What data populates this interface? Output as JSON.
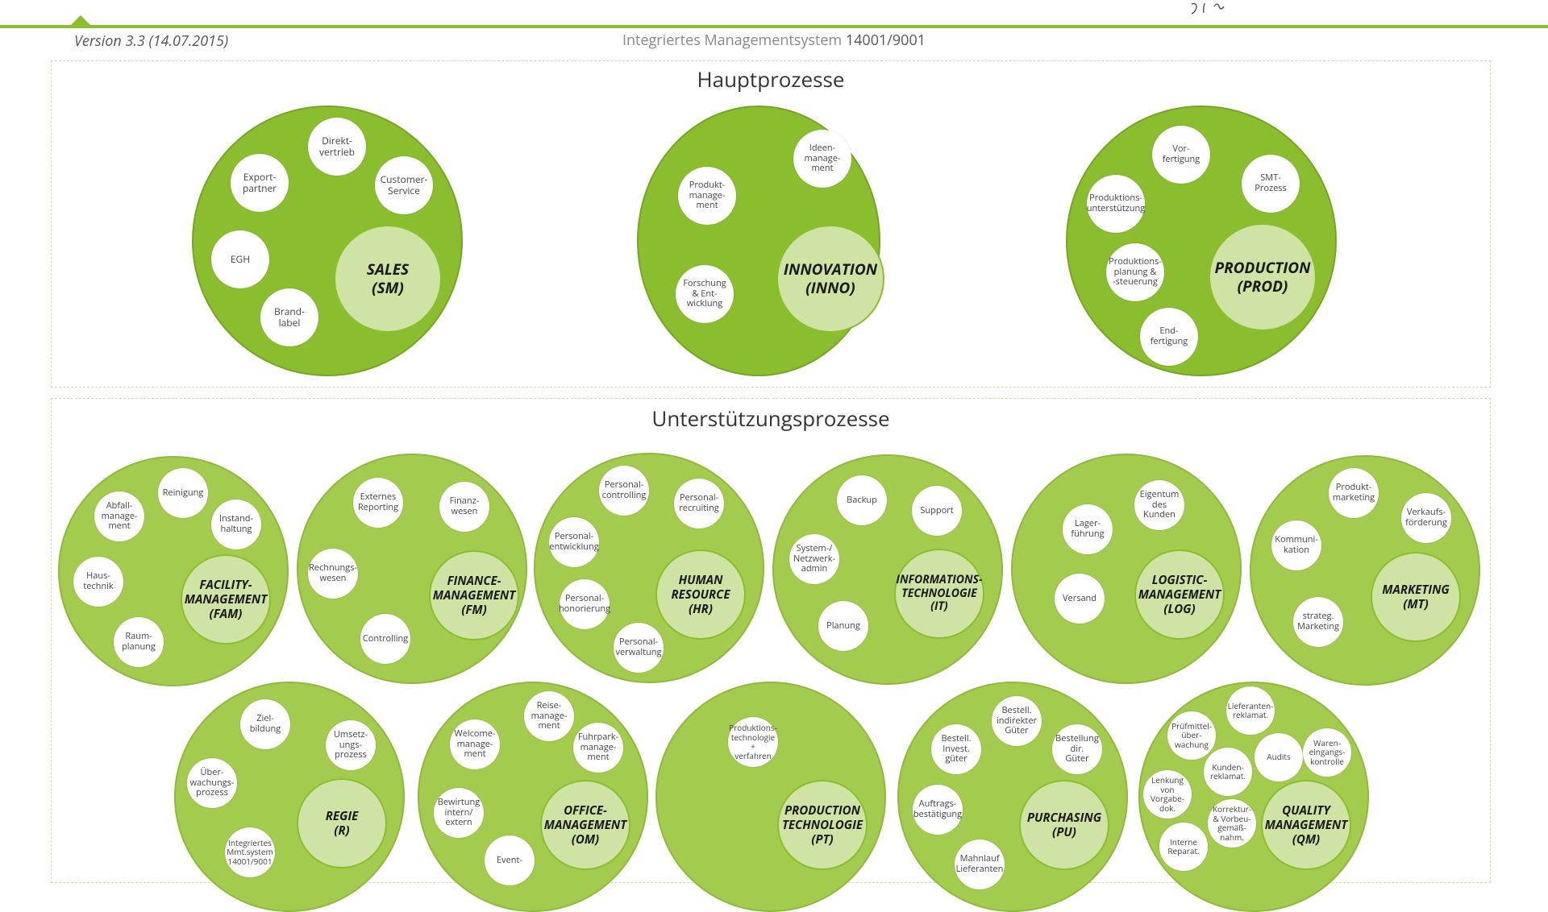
{
  "header": {
    "version": "Version 3.3 (14.07.2015)",
    "title_prefix": "Integriertes Managementsystem ",
    "title_suffix": "14001/9001"
  },
  "sections": {
    "main_title": "Hauptprozesse",
    "support_title": "Unterstützungsprozesse"
  },
  "main": {
    "sales": {
      "core": "SALES\n(SM)",
      "subs": [
        "Direkt-\nvertrieb",
        "Export-\npartner",
        "Customer-\nService",
        "EGH",
        "Brand-\nlabel"
      ]
    },
    "innovation": {
      "core": "INNOVATION\n(INNO)",
      "subs": [
        "Ideen-\nmanage-\nment",
        "Produkt-\nmanage-\nment",
        "Forschung\n& Ent-\nwicklung"
      ]
    },
    "production": {
      "core": "PRODUCTION\n(PROD)",
      "subs": [
        "Vor-\nfertigung",
        "SMT-\nProzess",
        "Produktions-\nunterstützung",
        "Produktions-\nplanung &\n-steuerung",
        "End-\nfertigung"
      ]
    }
  },
  "support": {
    "fam": {
      "core": "FACILITY-\nMANAGEMENT\n(FAM)",
      "subs": [
        "Reinigung",
        "Abfall-\nmanage-\nment",
        "Instand-\nhaltung",
        "Haus-\ntechnik",
        "Raum-\nplanung"
      ]
    },
    "fm": {
      "core": "FINANCE-\nMANAGEMENT\n(FM)",
      "subs": [
        "Externes\nReporting",
        "Finanz-\nwesen",
        "Rechnungs-\nwesen",
        "Controlling"
      ]
    },
    "hr": {
      "core": "HUMAN\nRESOURCE\n(HR)",
      "subs": [
        "Personal-\ncontrolling",
        "Personal-\nrecruiting",
        "Personal-\nentwicklung",
        "Personal-\nhonorierung",
        "Personal-\nverwaltung"
      ]
    },
    "it": {
      "core": "INFORMATIONS-\nTECHNOLOGIE\n(IT)",
      "subs": [
        "Backup",
        "Support",
        "System-/\nNetzwerk-\nadmin",
        "Planung"
      ]
    },
    "log": {
      "core": "LOGISTIC-\nMANAGEMENT\n(LOG)",
      "subs": [
        "Eigentum\ndes\nKunden",
        "Lager-\nführung",
        "Versand"
      ]
    },
    "mt": {
      "core": "MARKETING\n(MT)",
      "subs": [
        "Produkt-\nmarketing",
        "Verkaufs-\nförderung",
        "Kommuni-\nkation",
        "strateg.\nMarketing"
      ]
    },
    "r": {
      "core": "REGIE\n(R)",
      "subs": [
        "Ziel-\nbildung",
        "Umsetz-\nungs-\nprozess",
        "Über-\nwachungs-\nprozess",
        "Integriertes\nMmt.system\n14001/9001"
      ]
    },
    "om": {
      "core": "OFFICE-\nMANAGEMENT\n(OM)",
      "subs": [
        "Reise-\nmanage-\nment",
        "Welcome-\nmanage-\nment",
        "Fuhrpark-\nmanage-\nment",
        "Bewirtung\nintern/\nextern",
        "Event-"
      ]
    },
    "pt": {
      "core": "PRODUCTION\nTECHNOLOGIE\n(PT)",
      "subs": [
        "Produktions-\ntechnologie +\nverfahren"
      ]
    },
    "pu": {
      "core": "PURCHASING\n(PU)",
      "subs": [
        "Bestell.\nindirekter\nGüter",
        "Bestell.\nInvest.\ngüter",
        "Bestellung\ndir.\nGüter",
        "Auftrags-\nbestätigung",
        "Mahnlauf\nLieferanten"
      ]
    },
    "qm": {
      "core": "QUALITY\nMANAGEMENT\n(QM)",
      "subs": [
        "Lieferanten-\nreklamat.",
        "Prüfmittel-\nüber-\nwachung",
        "Audits",
        "Waren-\neingangs-\nkontrolle",
        "Kunden-\nreklamat.",
        "Lenkung\nvon\nVorgabe-\ndok.",
        "Korrektur-\n& Vorbeu-\ngemäß-\nnahm.",
        "Interne\nReparat."
      ]
    }
  }
}
